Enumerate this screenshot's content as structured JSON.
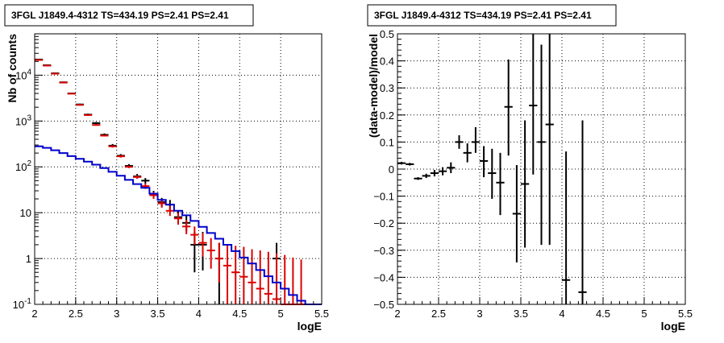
{
  "chart_data": [
    {
      "type": "scatter",
      "title": "3FGL J1849.4-4312 TS=434.19 PS=2.41 PS=2.41",
      "xlabel": "logE",
      "ylabel": "Nb of counts",
      "xlim": [
        2,
        5.5
      ],
      "ylim": [
        0.1,
        80000
      ],
      "yscale": "log",
      "grid": true,
      "xticks": [
        {
          "v": 2,
          "label": "2"
        },
        {
          "v": 2.5,
          "label": "2.5"
        },
        {
          "v": 3,
          "label": "3"
        },
        {
          "v": 3.5,
          "label": "3.5"
        },
        {
          "v": 4,
          "label": "4"
        },
        {
          "v": 4.5,
          "label": "4.5"
        },
        {
          "v": 5,
          "label": "5"
        },
        {
          "v": 5.5,
          "label": "5.5"
        }
      ],
      "yticks_major": [
        {
          "exp": -1,
          "label": "10",
          "sup": "-1"
        },
        {
          "exp": 0,
          "label": "1",
          "sup": ""
        },
        {
          "exp": 1,
          "label": "10",
          "sup": ""
        },
        {
          "exp": 2,
          "label": "10",
          "sup": "2"
        },
        {
          "exp": 3,
          "label": "10",
          "sup": "3"
        },
        {
          "exp": 4,
          "label": "10",
          "sup": "4"
        }
      ],
      "bin_width": 0.1,
      "series": [
        {
          "color": "#000000",
          "style": "errorbar",
          "points": [
            {
              "x": 2.05,
              "y": 22000,
              "lo": 21300,
              "hi": 22700
            },
            {
              "x": 2.15,
              "y": 16500,
              "lo": 16000,
              "hi": 17000
            },
            {
              "x": 2.25,
              "y": 11000,
              "lo": 10600,
              "hi": 11400
            },
            {
              "x": 2.35,
              "y": 7000,
              "lo": 6750,
              "hi": 7250
            },
            {
              "x": 2.45,
              "y": 4000,
              "lo": 3850,
              "hi": 4150
            },
            {
              "x": 2.55,
              "y": 2300,
              "lo": 2200,
              "hi": 2400
            },
            {
              "x": 2.65,
              "y": 1380,
              "lo": 1310,
              "hi": 1450
            },
            {
              "x": 2.75,
              "y": 900,
              "lo": 850,
              "hi": 950
            },
            {
              "x": 2.85,
              "y": 500,
              "lo": 465,
              "hi": 535
            },
            {
              "x": 2.95,
              "y": 290,
              "lo": 265,
              "hi": 315
            },
            {
              "x": 3.05,
              "y": 175,
              "lo": 160,
              "hi": 190
            },
            {
              "x": 3.15,
              "y": 105,
              "lo": 95,
              "hi": 115
            },
            {
              "x": 3.25,
              "y": 62,
              "lo": 55,
              "hi": 70
            },
            {
              "x": 3.35,
              "y": 50,
              "lo": 43,
              "hi": 57
            },
            {
              "x": 3.45,
              "y": 25,
              "lo": 20,
              "hi": 30
            },
            {
              "x": 3.55,
              "y": 17,
              "lo": 13,
              "hi": 21
            },
            {
              "x": 3.65,
              "y": 15,
              "lo": 11.5,
              "hi": 19
            },
            {
              "x": 3.75,
              "y": 8,
              "lo": 5.5,
              "hi": 11
            },
            {
              "x": 3.85,
              "y": 6,
              "lo": 4,
              "hi": 8.5
            },
            {
              "x": 3.95,
              "y": 2,
              "lo": 0.5,
              "hi": 3.8
            },
            {
              "x": 4.05,
              "y": 2,
              "lo": 0.55,
              "hi": 3.8
            },
            {
              "x": 4.25,
              "y": 1,
              "lo": 0.1,
              "hi": 2.2
            },
            {
              "x": 4.95,
              "y": 1,
              "lo": 0.1,
              "hi": 2.2
            }
          ]
        },
        {
          "color": "#dd0000",
          "style": "errorbar",
          "points": [
            {
              "x": 2.05,
              "y": 21500,
              "lo": 21000,
              "hi": 22000
            },
            {
              "x": 2.15,
              "y": 16200,
              "lo": 15800,
              "hi": 16600
            },
            {
              "x": 2.25,
              "y": 10800,
              "lo": 10500,
              "hi": 11100
            },
            {
              "x": 2.35,
              "y": 6900,
              "lo": 6700,
              "hi": 7100
            },
            {
              "x": 2.45,
              "y": 3950,
              "lo": 3850,
              "hi": 4050
            },
            {
              "x": 2.55,
              "y": 2250,
              "lo": 2180,
              "hi": 2320
            },
            {
              "x": 2.65,
              "y": 1350,
              "lo": 1300,
              "hi": 1400
            },
            {
              "x": 2.75,
              "y": 820,
              "lo": 790,
              "hi": 850
            },
            {
              "x": 2.85,
              "y": 480,
              "lo": 460,
              "hi": 500
            },
            {
              "x": 2.95,
              "y": 280,
              "lo": 265,
              "hi": 295
            },
            {
              "x": 3.05,
              "y": 170,
              "lo": 160,
              "hi": 180
            },
            {
              "x": 3.15,
              "y": 100,
              "lo": 94,
              "hi": 106
            },
            {
              "x": 3.25,
              "y": 60,
              "lo": 55,
              "hi": 65
            },
            {
              "x": 3.35,
              "y": 38,
              "lo": 33,
              "hi": 43
            },
            {
              "x": 3.45,
              "y": 24,
              "lo": 20,
              "hi": 28
            },
            {
              "x": 3.55,
              "y": 16,
              "lo": 13,
              "hi": 19.5
            },
            {
              "x": 3.65,
              "y": 11,
              "lo": 8.5,
              "hi": 14
            },
            {
              "x": 3.75,
              "y": 7.5,
              "lo": 5.5,
              "hi": 10
            },
            {
              "x": 3.85,
              "y": 5,
              "lo": 3.4,
              "hi": 7
            },
            {
              "x": 3.95,
              "y": 3.3,
              "lo": 2,
              "hi": 5
            },
            {
              "x": 4.05,
              "y": 2.2,
              "lo": 1.1,
              "hi": 3.6
            },
            {
              "x": 4.15,
              "y": 1.5,
              "lo": 0.6,
              "hi": 2.8
            },
            {
              "x": 4.25,
              "y": 1.0,
              "lo": 0.3,
              "hi": 2.2
            },
            {
              "x": 4.35,
              "y": 0.7,
              "lo": 0.1,
              "hi": 2.0
            },
            {
              "x": 4.45,
              "y": 0.5,
              "lo": 0.1,
              "hi": 1.9
            },
            {
              "x": 4.55,
              "y": 0.4,
              "lo": 0.1,
              "hi": 1.8
            },
            {
              "x": 4.65,
              "y": 0.3,
              "lo": 0.1,
              "hi": 1.6
            },
            {
              "x": 4.75,
              "y": 0.22,
              "lo": 0.1,
              "hi": 1.5
            },
            {
              "x": 4.85,
              "y": 0.17,
              "lo": 0.1,
              "hi": 1.4
            },
            {
              "x": 4.95,
              "y": 0.13,
              "lo": 0.1,
              "hi": 1.3
            },
            {
              "x": 5.05,
              "y": 0.1,
              "lo": 0.1,
              "hi": 1.2
            },
            {
              "x": 5.15,
              "y": 0.1,
              "lo": 0.1,
              "hi": 1.05
            },
            {
              "x": 5.25,
              "y": 0.1,
              "lo": 0.1,
              "hi": 0.95
            }
          ]
        },
        {
          "color": "#0000cc",
          "style": "step",
          "edges": [
            2.0,
            2.1,
            2.2,
            2.3,
            2.4,
            2.5,
            2.6,
            2.7,
            2.8,
            2.9,
            3.0,
            3.1,
            3.2,
            3.3,
            3.4,
            3.5,
            3.6,
            3.7,
            3.8,
            3.9,
            4.0,
            4.1,
            4.2,
            4.3,
            4.4,
            4.5,
            4.6,
            4.7,
            4.8,
            4.9,
            5.0,
            5.1,
            5.2,
            5.3,
            5.4,
            5.5
          ],
          "values": [
            280,
            260,
            230,
            200,
            172,
            150,
            130,
            112,
            94,
            78,
            64,
            52,
            42,
            35,
            26,
            19,
            15,
            11,
            8.8,
            6.6,
            4.9,
            3.6,
            2.7,
            2.0,
            1.45,
            1.05,
            0.78,
            0.56,
            0.41,
            0.3,
            0.22,
            0.16,
            0.12,
            0.09,
            0.07
          ]
        }
      ]
    },
    {
      "type": "scatter",
      "title": "3FGL J1849.4-4312 TS=434.19 PS=2.41 PS=2.41",
      "xlabel": "logE",
      "ylabel": "(data-model)/model",
      "xlim": [
        2,
        5.5
      ],
      "ylim": [
        -0.5,
        0.5
      ],
      "grid": true,
      "xticks": [
        {
          "v": 2,
          "label": "2"
        },
        {
          "v": 2.5,
          "label": "2.5"
        },
        {
          "v": 3,
          "label": "3"
        },
        {
          "v": 3.5,
          "label": "3.5"
        },
        {
          "v": 4,
          "label": "4"
        },
        {
          "v": 4.5,
          "label": "4.5"
        },
        {
          "v": 5,
          "label": "5"
        },
        {
          "v": 5.5,
          "label": "5.5"
        }
      ],
      "yticks": [
        {
          "v": -0.5,
          "label": "−0.5"
        },
        {
          "v": -0.4,
          "label": "−0.4"
        },
        {
          "v": -0.3,
          "label": "−0.3"
        },
        {
          "v": -0.2,
          "label": "−0.2"
        },
        {
          "v": -0.1,
          "label": "−0.1"
        },
        {
          "v": 0,
          "label": "0"
        },
        {
          "v": 0.1,
          "label": "0.1"
        },
        {
          "v": 0.2,
          "label": "0.2"
        },
        {
          "v": 0.3,
          "label": "0.3"
        },
        {
          "v": 0.4,
          "label": "0.4"
        },
        {
          "v": 0.5,
          "label": "0.5"
        }
      ],
      "bin_width": 0.1,
      "series": [
        {
          "color": "#000000",
          "style": "errorbar",
          "points": [
            {
              "x": 2.05,
              "y": 0.022,
              "lo": 0.017,
              "hi": 0.027
            },
            {
              "x": 2.15,
              "y": 0.018,
              "lo": 0.013,
              "hi": 0.023
            },
            {
              "x": 2.25,
              "y": -0.035,
              "lo": -0.04,
              "hi": -0.03
            },
            {
              "x": 2.35,
              "y": -0.025,
              "lo": -0.033,
              "hi": -0.017
            },
            {
              "x": 2.45,
              "y": -0.015,
              "lo": -0.027,
              "hi": -0.003
            },
            {
              "x": 2.55,
              "y": -0.008,
              "lo": -0.023,
              "hi": 0.007
            },
            {
              "x": 2.65,
              "y": 0.005,
              "lo": -0.015,
              "hi": 0.025
            },
            {
              "x": 2.75,
              "y": 0.1,
              "lo": 0.075,
              "hi": 0.125
            },
            {
              "x": 2.85,
              "y": 0.06,
              "lo": 0.025,
              "hi": 0.095
            },
            {
              "x": 2.95,
              "y": 0.1,
              "lo": 0.06,
              "hi": 0.155
            },
            {
              "x": 3.05,
              "y": 0.03,
              "lo": -0.03,
              "hi": 0.085
            },
            {
              "x": 3.15,
              "y": -0.015,
              "lo": -0.11,
              "hi": 0.075
            },
            {
              "x": 3.25,
              "y": -0.05,
              "lo": -0.17,
              "hi": 0.06
            },
            {
              "x": 3.35,
              "y": 0.23,
              "lo": 0.05,
              "hi": 0.405
            },
            {
              "x": 3.45,
              "y": -0.165,
              "lo": -0.345,
              "hi": 0.015
            },
            {
              "x": 3.55,
              "y": -0.055,
              "lo": -0.29,
              "hi": 0.18
            },
            {
              "x": 3.65,
              "y": 0.235,
              "lo": -0.02,
              "hi": 0.5
            },
            {
              "x": 3.75,
              "y": 0.1,
              "lo": -0.28,
              "hi": 0.46
            },
            {
              "x": 3.85,
              "y": 0.165,
              "lo": -0.28,
              "hi": 0.5
            },
            {
              "x": 4.05,
              "y": -0.41,
              "lo": -0.5,
              "hi": 0.065
            },
            {
              "x": 4.25,
              "y": -0.455,
              "lo": -0.5,
              "hi": 0.18
            }
          ]
        }
      ]
    }
  ]
}
